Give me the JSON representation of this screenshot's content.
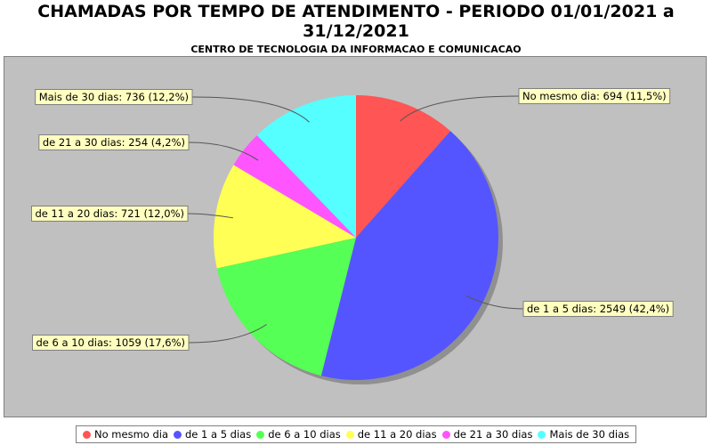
{
  "chart_data": {
    "type": "pie",
    "title": "CHAMADAS POR TEMPO DE ATENDIMENTO - PERIODO 01/01/2021 a 31/12/2021",
    "title_lines": [
      "CHAMADAS POR TEMPO DE ATENDIMENTO - PERIODO 01/01/2021 a",
      "31/12/2021"
    ],
    "subtitle": "CENTRO DE TECNOLOGIA DA INFORMACAO E COMUNICACAO",
    "legend_position": "bottom",
    "slices": [
      {
        "name": "No mesmo dia",
        "value": 694,
        "percent": "11,5%",
        "label": "No mesmo dia: 694 (11,5%)",
        "color": "#ff5555"
      },
      {
        "name": "de 1 a 5 dias",
        "value": 2549,
        "percent": "42,4%",
        "label": "de 1 a 5 dias: 2549 (42,4%)",
        "color": "#5555ff"
      },
      {
        "name": "de 6 a 10 dias",
        "value": 1059,
        "percent": "17,6%",
        "label": "de 6 a 10 dias: 1059 (17,6%)",
        "color": "#55ff55"
      },
      {
        "name": "de 11 a 20 dias",
        "value": 721,
        "percent": "12,0%",
        "label": "de 11 a 20 dias: 721 (12,0%)",
        "color": "#ffff55"
      },
      {
        "name": "de 21 a 30 dias",
        "value": 254,
        "percent": "4,2%",
        "label": "de 21 a 30 dias: 254 (4,2%)",
        "color": "#ff55ff"
      },
      {
        "name": "Mais de 30 dias",
        "value": 736,
        "percent": "12,2%",
        "label": "Mais de 30 dias: 736 (12,2%)",
        "color": "#55ffff"
      }
    ]
  }
}
